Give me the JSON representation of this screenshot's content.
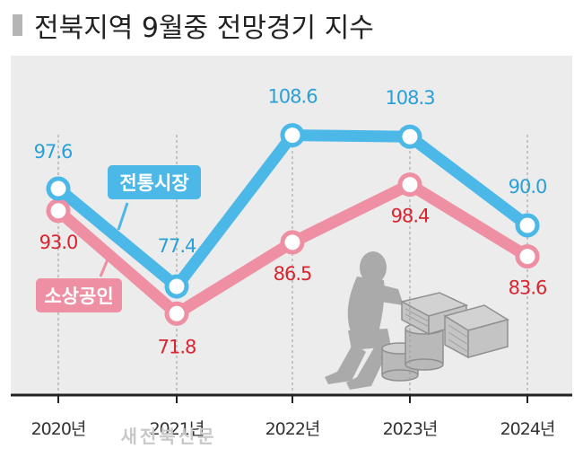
{
  "header": {
    "title": "전북지역 9월중 전망경기 지수"
  },
  "watermark": "새전북신문",
  "chart_data": {
    "type": "line",
    "title": "전북지역 9월중 전망경기 지수",
    "categories": [
      "2020년",
      "2021년",
      "2022년",
      "2023년",
      "2024년"
    ],
    "series": [
      {
        "name": "전통시장",
        "color": "#4bb8e8",
        "label_color": "#2aa0d8",
        "values": [
          97.6,
          77.4,
          108.6,
          108.3,
          90.0
        ],
        "labels": [
          "97.6",
          "77.4",
          "108.6",
          "108.3",
          "90.0"
        ]
      },
      {
        "name": "소상공인",
        "color": "#ee8fa3",
        "label_color": "#d9252f",
        "values": [
          93.0,
          71.8,
          86.5,
          98.4,
          83.6
        ],
        "labels": [
          "93.0",
          "71.8",
          "86.5",
          "98.4",
          "83.6"
        ]
      }
    ],
    "ylim": [
      55,
      125
    ],
    "grid": "vertical dashed",
    "background": "#ececec"
  }
}
